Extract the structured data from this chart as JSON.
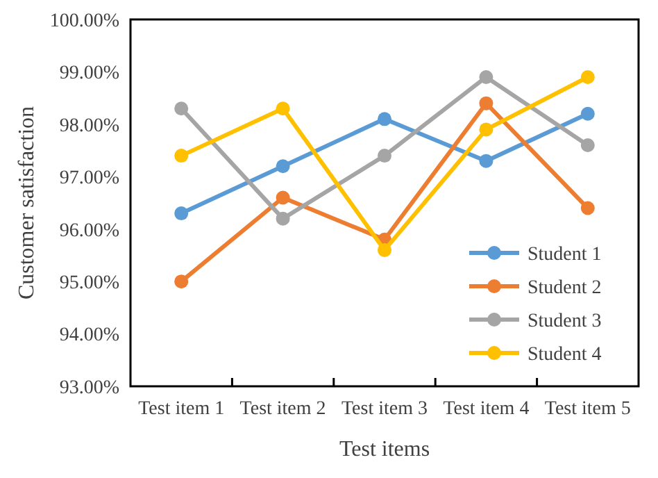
{
  "chart_data": {
    "type": "line",
    "xlabel": "Test items",
    "ylabel": "Customer satisfaction",
    "categories": [
      "Test item 1",
      "Test item 2",
      "Test item 3",
      "Test item 4",
      "Test item 5"
    ],
    "series": [
      {
        "name": "Student 1",
        "color": "#5b9bd5",
        "values": [
          96.3,
          97.2,
          98.1,
          97.3,
          98.2
        ]
      },
      {
        "name": "Student 2",
        "color": "#ed7d31",
        "values": [
          95.0,
          96.6,
          95.8,
          98.4,
          96.4
        ]
      },
      {
        "name": "Student 3",
        "color": "#a5a5a5",
        "values": [
          98.3,
          96.2,
          97.4,
          98.9,
          97.6
        ]
      },
      {
        "name": "Student 4",
        "color": "#ffc000",
        "values": [
          97.4,
          98.3,
          95.6,
          97.9,
          98.9
        ]
      }
    ],
    "ylim": [
      93,
      100
    ],
    "yticks": [
      {
        "value": 93,
        "label": "93.00%"
      },
      {
        "value": 94,
        "label": "94.00%"
      },
      {
        "value": 95,
        "label": "95.00%"
      },
      {
        "value": 96,
        "label": "96.00%"
      },
      {
        "value": 97,
        "label": "97.00%"
      },
      {
        "value": 98,
        "label": "98.00%"
      },
      {
        "value": 99,
        "label": "99.00%"
      },
      {
        "value": 100,
        "label": "100.00%"
      }
    ],
    "legend": "bottom right",
    "marker": "circle",
    "line_style": "solid",
    "grid": false
  }
}
